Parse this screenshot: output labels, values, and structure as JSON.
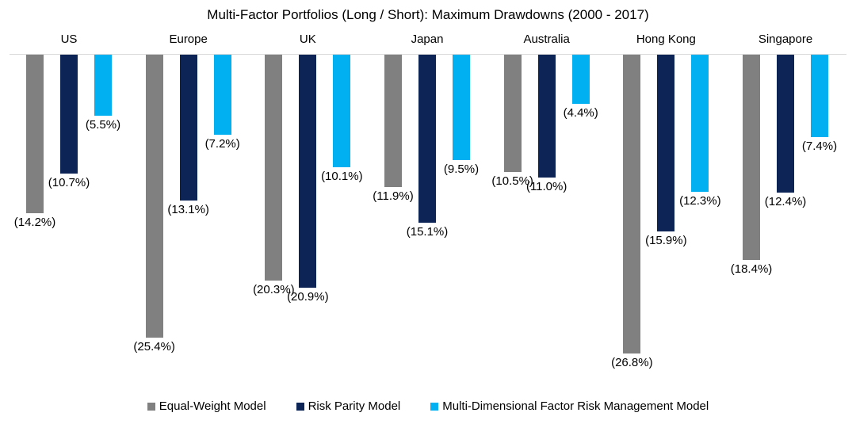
{
  "chart_data": {
    "type": "bar",
    "title": "Multi-Factor Portfolios (Long / Short): Maximum Drawdowns (2000 - 2017)",
    "orientation": "vertical",
    "bars_direction": "down",
    "baseline_value": 0,
    "value_axis_visible": false,
    "grid": false,
    "legend_position": "bottom",
    "value_range": [
      -28,
      0
    ],
    "categories": [
      "US",
      "Europe",
      "UK",
      "Japan",
      "Australia",
      "Hong Kong",
      "Singapore"
    ],
    "series": [
      {
        "name": "Equal-Weight Model",
        "color": "#808080",
        "values": [
          14.2,
          25.4,
          20.3,
          11.9,
          10.5,
          26.8,
          18.4
        ],
        "labels": [
          "(14.2%)",
          "(25.4%)",
          "(20.3%)",
          "(11.9%)",
          "(10.5%)",
          "(26.8%)",
          "(18.4%)"
        ]
      },
      {
        "name": "Risk Parity Model",
        "color": "#0d2456",
        "values": [
          10.7,
          13.1,
          20.9,
          15.1,
          11.0,
          15.9,
          12.4
        ],
        "labels": [
          "(10.7%)",
          "(13.1%)",
          "(20.9%)",
          "(15.1%)",
          "(11.0%)",
          "(15.9%)",
          "(12.4%)"
        ]
      },
      {
        "name": "Multi-Dimensional Factor Risk Management Model",
        "color": "#00b0f0",
        "values": [
          5.5,
          7.2,
          10.1,
          9.5,
          4.4,
          12.3,
          7.4
        ],
        "labels": [
          "(5.5%)",
          "(7.2%)",
          "(10.1%)",
          "(9.5%)",
          "(4.4%)",
          "(12.3%)",
          "(7.4%)"
        ]
      }
    ]
  },
  "colors": {
    "baseline": "#d9d9d9",
    "text": "#000000",
    "background": "#ffffff"
  }
}
